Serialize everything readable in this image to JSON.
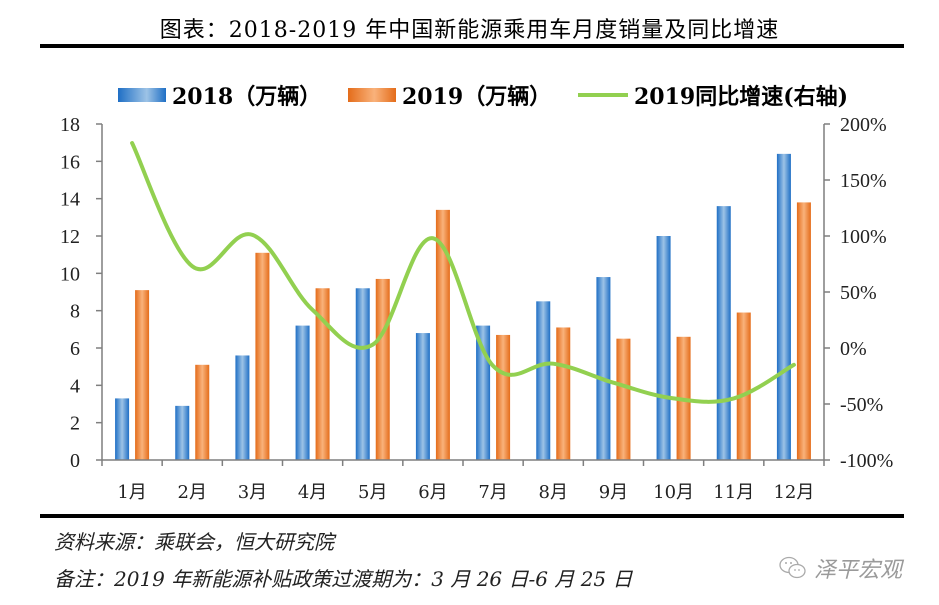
{
  "title": "图表：2018-2019 年中国新能源乘用车月度销量及同比增速",
  "legend": {
    "series_2018": "2018（万辆）",
    "series_2019": "2019（万辆）",
    "series_growth": "2019同比增速(右轴)"
  },
  "colors": {
    "bar_2018": "#1f6fc5",
    "bar_2018_light": "#9dc3e6",
    "bar_2019": "#e46c1a",
    "bar_2019_light": "#f9b27b",
    "growth_line": "#92d050",
    "axis": "#7f7f7f"
  },
  "chart_data": {
    "type": "bar",
    "title": "2018-2019 年中国新能源乘用车月度销量及同比增速",
    "categories": [
      "1月",
      "2月",
      "3月",
      "4月",
      "5月",
      "6月",
      "7月",
      "8月",
      "9月",
      "10月",
      "11月",
      "12月"
    ],
    "series": [
      {
        "name": "2018（万辆）",
        "type": "bar",
        "axis": "left",
        "values": [
          3.3,
          2.9,
          5.6,
          7.2,
          9.2,
          6.8,
          7.2,
          8.5,
          9.8,
          12.0,
          13.6,
          16.4
        ]
      },
      {
        "name": "2019（万辆）",
        "type": "bar",
        "axis": "left",
        "values": [
          9.1,
          5.1,
          11.1,
          9.2,
          9.7,
          13.4,
          6.7,
          7.1,
          6.5,
          6.6,
          7.9,
          13.8
        ]
      },
      {
        "name": "2019同比增速(右轴)",
        "type": "line",
        "axis": "right",
        "unit": "%",
        "values": [
          183,
          73,
          101,
          34,
          3,
          98,
          -16,
          -14,
          -31,
          -45,
          -45,
          -15
        ]
      }
    ],
    "left_axis": {
      "ylim": [
        0,
        18
      ],
      "ticks": [
        "0",
        "2",
        "4",
        "6",
        "8",
        "10",
        "12",
        "14",
        "16",
        "18"
      ],
      "tick_values": [
        0,
        2,
        4,
        6,
        8,
        10,
        12,
        14,
        16,
        18
      ]
    },
    "right_axis": {
      "ylim": [
        -100,
        200
      ],
      "ticks": [
        "-100%",
        "-50%",
        "0%",
        "50%",
        "100%",
        "150%",
        "200%"
      ],
      "tick_values": [
        -100,
        -50,
        0,
        50,
        100,
        150,
        200
      ]
    },
    "xlabel": "",
    "ylabel": "",
    "grid": false,
    "legend_position": "top"
  },
  "notes": {
    "source": "资料来源：乘联会，恒大研究院",
    "remark": "备注：2019 年新能源补贴政策过渡期为：3 月 26 日-6 月 25 日"
  },
  "watermark": {
    "icon": "wechat-icon",
    "text": "泽平宏观"
  }
}
